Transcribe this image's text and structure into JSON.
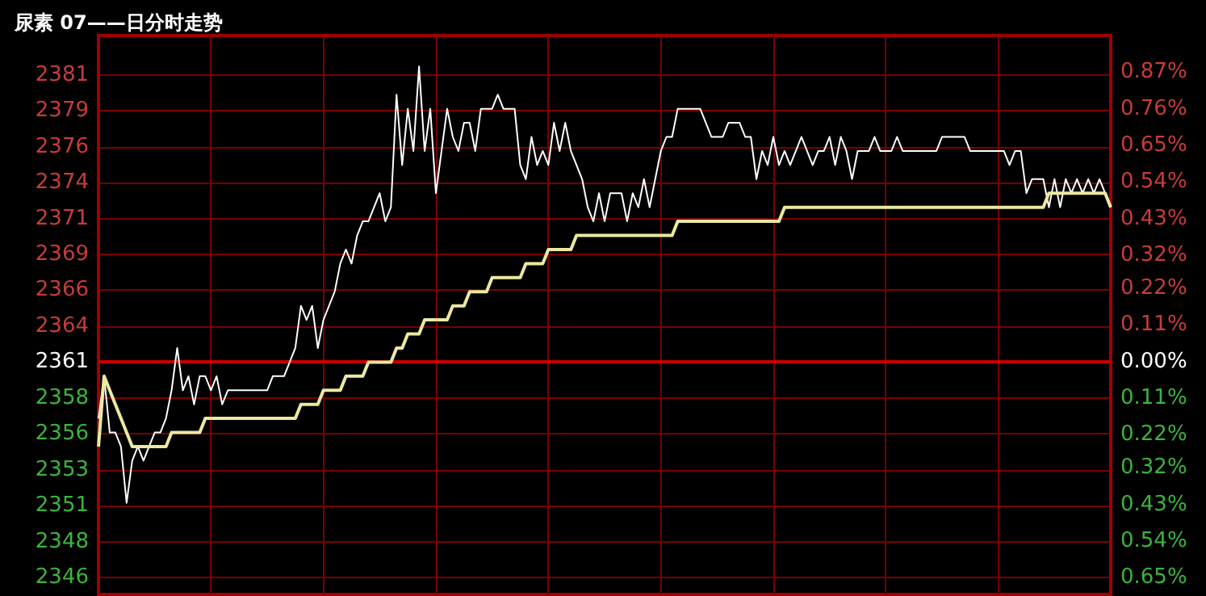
{
  "chart_data": {
    "type": "line",
    "title": "尿素 07——日分时走势",
    "categories": [
      null,
      null,
      null,
      null,
      null,
      null,
      null,
      null,
      null,
      null,
      null,
      null,
      null,
      null,
      null,
      null,
      null,
      null,
      null,
      null,
      null,
      null,
      null,
      null,
      null,
      null,
      null,
      null,
      null,
      null,
      null,
      null,
      null,
      null,
      null,
      null,
      null,
      null,
      null,
      null,
      null,
      null,
      null,
      null,
      null,
      null,
      null,
      null,
      null,
      null,
      null,
      null,
      null,
      null,
      null,
      null,
      null,
      null,
      null,
      null,
      null,
      null,
      null,
      null,
      null,
      null,
      null,
      null,
      null,
      null,
      null,
      null,
      null,
      null,
      null,
      null,
      null,
      null,
      null,
      null,
      null,
      null,
      null,
      null,
      null,
      null,
      null,
      null,
      null,
      null,
      null,
      null,
      null,
      null,
      null,
      null,
      null,
      null,
      null,
      null,
      null,
      null,
      null,
      null,
      null,
      null,
      null,
      null,
      null,
      null,
      null,
      null,
      null,
      null,
      null,
      null,
      null,
      null,
      null,
      null,
      null,
      null,
      null,
      null,
      null,
      null,
      null,
      null,
      null,
      null,
      null,
      null,
      null,
      null,
      null,
      null,
      null,
      null,
      null,
      null,
      null,
      null,
      null,
      null,
      null,
      null,
      null,
      null,
      null,
      null,
      null,
      null,
      null,
      null,
      null,
      null,
      null,
      null,
      null,
      null,
      null,
      null,
      null,
      null,
      null,
      null,
      null,
      null,
      null,
      null,
      null,
      null,
      null,
      null,
      null,
      null,
      null,
      null,
      null,
      null,
      null
    ],
    "ylim": [
      2344.5,
      2384.2
    ],
    "yticks": [
      {
        "value": 2345.7,
        "label": "2346"
      },
      {
        "value": 2348.25,
        "label": "2348"
      },
      {
        "value": 2350.8,
        "label": "2351"
      },
      {
        "value": 2353.35,
        "label": "2353"
      },
      {
        "value": 2355.9,
        "label": "2356"
      },
      {
        "value": 2358.45,
        "label": "2358"
      },
      {
        "value": 2361,
        "label": "2361"
      },
      {
        "value": 2363.55,
        "label": "2364"
      },
      {
        "value": 2366.1,
        "label": "2366"
      },
      {
        "value": 2368.65,
        "label": "2369"
      },
      {
        "value": 2371.2,
        "label": "2371"
      },
      {
        "value": 2373.75,
        "label": "2374"
      },
      {
        "value": 2376.3,
        "label": "2376"
      },
      {
        "value": 2378.85,
        "label": "2379"
      },
      {
        "value": 2381.4,
        "label": "2381"
      }
    ],
    "y2lim": [
      -0.7,
      0.98
    ],
    "y2ticks": [
      {
        "value": -0.65,
        "label": "0.65%"
      },
      {
        "value": -0.54,
        "label": "0.54%"
      },
      {
        "value": -0.43,
        "label": "0.43%"
      },
      {
        "value": -0.32,
        "label": "0.32%"
      },
      {
        "value": -0.22,
        "label": "0.22%"
      },
      {
        "value": -0.11,
        "label": "0.11%"
      },
      {
        "value": 0,
        "label": "0.00%"
      },
      {
        "value": 0.11,
        "label": "0.11%"
      },
      {
        "value": 0.22,
        "label": "0.22%"
      },
      {
        "value": 0.32,
        "label": "0.32%"
      },
      {
        "value": 0.43,
        "label": "0.43%"
      },
      {
        "value": 0.54,
        "label": "0.54%"
      },
      {
        "value": 0.65,
        "label": "0.65%"
      },
      {
        "value": 0.76,
        "label": "0.76%"
      },
      {
        "value": 0.87,
        "label": "0.87%"
      }
    ],
    "tick_labels": "y",
    "grid": true,
    "line_style": "solid",
    "ref_lines": [
      {
        "axis": "y",
        "value": 2361,
        "color": "#c80000"
      }
    ],
    "series": [
      {
        "color": "#ffffff",
        "values": [
          2357,
          2360,
          2356,
          2356,
          2355,
          2351,
          2354,
          2355,
          2354,
          2355,
          2356,
          2356,
          2357,
          2359,
          2362,
          2359,
          2360,
          2358,
          2360,
          2360,
          2359,
          2360,
          2358,
          2359,
          2359,
          2359,
          2359,
          2359,
          2359,
          2359,
          2359,
          2360,
          2360,
          2360,
          2361,
          2362,
          2365,
          2364,
          2365,
          2362,
          2364,
          2365,
          2366,
          2368,
          2369,
          2368,
          2370,
          2371,
          2371,
          2372,
          2373,
          2371,
          2372,
          2380,
          2375,
          2379,
          2376,
          2382,
          2376,
          2379,
          2373,
          2376,
          2379,
          2377,
          2376,
          2378,
          2378,
          2376,
          2379,
          2379,
          2379,
          2380,
          2379,
          2379,
          2379,
          2375,
          2374,
          2377,
          2375,
          2376,
          2375,
          2378,
          2376,
          2378,
          2376,
          2375,
          2374,
          2372,
          2371,
          2373,
          2371,
          2373,
          2373,
          2373,
          2371,
          2373,
          2372,
          2374,
          2372,
          2374,
          2376,
          2377,
          2377,
          2379,
          2379,
          2379,
          2379,
          2379,
          2378,
          2377,
          2377,
          2377,
          2378,
          2378,
          2378,
          2377,
          2377,
          2374,
          2376,
          2375,
          2377,
          2375,
          2376,
          2375,
          2376,
          2377,
          2376,
          2375,
          2376,
          2376,
          2377,
          2375,
          2377,
          2376,
          2374,
          2376,
          2376,
          2376,
          2377,
          2376,
          2376,
          2376,
          2377,
          2376,
          2376,
          2376,
          2376,
          2376,
          2376,
          2376,
          2377,
          2377,
          2377,
          2377,
          2377,
          2376,
          2376,
          2376,
          2376,
          2376,
          2376,
          2376,
          2375,
          2376,
          2376,
          2373,
          2374,
          2374,
          2374,
          2372,
          2374,
          2372,
          2374,
          2373,
          2374,
          2373,
          2374,
          2373,
          2374,
          2373,
          2372
        ]
      },
      {
        "color": "#ece8a0",
        "values": [
          2355,
          2360,
          2359,
          2358,
          2357,
          2356,
          2355,
          2355,
          2355,
          2355,
          2355,
          2355,
          2355,
          2356,
          2356,
          2356,
          2356,
          2356,
          2356,
          2357,
          2357,
          2357,
          2357,
          2357,
          2357,
          2357,
          2357,
          2357,
          2357,
          2357,
          2357,
          2357,
          2357,
          2357,
          2357,
          2357,
          2358,
          2358,
          2358,
          2358,
          2359,
          2359,
          2359,
          2359,
          2360,
          2360,
          2360,
          2360,
          2361,
          2361,
          2361,
          2361,
          2361,
          2362,
          2362,
          2363,
          2363,
          2363,
          2364,
          2364,
          2364,
          2364,
          2364,
          2365,
          2365,
          2365,
          2366,
          2366,
          2366,
          2366,
          2367,
          2367,
          2367,
          2367,
          2367,
          2367,
          2368,
          2368,
          2368,
          2368,
          2369,
          2369,
          2369,
          2369,
          2369,
          2370,
          2370,
          2370,
          2370,
          2370,
          2370,
          2370,
          2370,
          2370,
          2370,
          2370,
          2370,
          2370,
          2370,
          2370,
          2370,
          2370,
          2370,
          2371,
          2371,
          2371,
          2371,
          2371,
          2371,
          2371,
          2371,
          2371,
          2371,
          2371,
          2371,
          2371,
          2371,
          2371,
          2371,
          2371,
          2371,
          2371,
          2372,
          2372,
          2372,
          2372,
          2372,
          2372,
          2372,
          2372,
          2372,
          2372,
          2372,
          2372,
          2372,
          2372,
          2372,
          2372,
          2372,
          2372,
          2372,
          2372,
          2372,
          2372,
          2372,
          2372,
          2372,
          2372,
          2372,
          2372,
          2372,
          2372,
          2372,
          2372,
          2372,
          2372,
          2372,
          2372,
          2372,
          2372,
          2372,
          2372,
          2372,
          2372,
          2372,
          2372,
          2372,
          2372,
          2372,
          2373,
          2373,
          2373,
          2373,
          2373,
          2373,
          2373,
          2373,
          2373,
          2373,
          2373,
          2372
        ]
      }
    ]
  }
}
